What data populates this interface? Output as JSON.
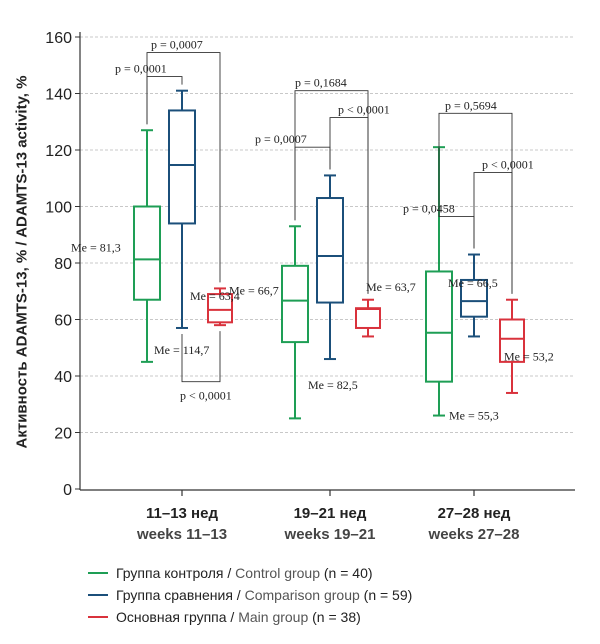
{
  "chart_data": {
    "type": "box",
    "ylabel": "Активность ADAMTS-13, % / ADAMTS-13 activity, %",
    "ylim": [
      0,
      160
    ],
    "yticks": [
      0,
      20,
      40,
      60,
      80,
      100,
      120,
      140,
      160
    ],
    "grid": true,
    "categories": [
      {
        "ru": "11–13 нед",
        "en": "weeks 11–13"
      },
      {
        "ru": "19–21 нед",
        "en": "weeks 19–21"
      },
      {
        "ru": "27–28 нед",
        "en": "weeks 27–28"
      }
    ],
    "series": [
      {
        "name": "Группа контроля / Control group (n = 40)",
        "name_ru": "Группа контроля",
        "name_en": "Control group",
        "n": "(n = 40)",
        "color": "#1e9e55",
        "boxes": [
          {
            "min": 45,
            "q1": 67,
            "median": 81.3,
            "q3": 100,
            "max": 127,
            "label": "Me = 81,3"
          },
          {
            "min": 25,
            "q1": 52,
            "median": 66.7,
            "q3": 79,
            "max": 93,
            "label": "Me = 66,7"
          },
          {
            "min": 26,
            "q1": 38,
            "median": 55.3,
            "q3": 77,
            "max": 121,
            "label": "Me = 55,3"
          }
        ]
      },
      {
        "name": "Группа сравнения / Comparison group (n = 59)",
        "name_ru": "Группа сравнения",
        "name_en": "Comparison group",
        "n": "(n = 59)",
        "color": "#1b4f7a",
        "boxes": [
          {
            "min": 57,
            "q1": 94,
            "median": 114.7,
            "q3": 134,
            "max": 141,
            "label": "Me = 114,7"
          },
          {
            "min": 46,
            "q1": 66,
            "median": 82.5,
            "q3": 103,
            "max": 111,
            "label": "Me = 82,5"
          },
          {
            "min": 54,
            "q1": 61,
            "median": 66.5,
            "q3": 74,
            "max": 83,
            "label": "Me = 66,5"
          }
        ]
      },
      {
        "name": "Основная группа / Main group (n = 38)",
        "name_ru": "Основная группа",
        "name_en": "Main group",
        "n": "(n = 38)",
        "color": "#d9323c",
        "boxes": [
          {
            "min": 58,
            "q1": 59,
            "median": 63.4,
            "q3": 69,
            "max": 71,
            "label": "Me = 63,4"
          },
          {
            "min": 54,
            "q1": 57,
            "median": 63.7,
            "q3": 64,
            "max": 67,
            "label": "Me = 63,7"
          },
          {
            "min": 34,
            "q1": 45,
            "median": 53.2,
            "q3": 60,
            "max": 67,
            "label": "Me = 53,2"
          }
        ]
      }
    ],
    "pvalues": [
      {
        "cat": 0,
        "from": 0,
        "to": 1,
        "y": 146,
        "label": "p = 0,0001"
      },
      {
        "cat": 0,
        "from": 0,
        "to": 2,
        "y": 154.5,
        "label": "p = 0,0007"
      },
      {
        "cat": 0,
        "from": 1,
        "to": 2,
        "y": 38,
        "label": "p < 0,0001",
        "below": true
      },
      {
        "cat": 1,
        "from": 0,
        "to": 1,
        "y": 121,
        "label": "p = 0,0007"
      },
      {
        "cat": 1,
        "from": 0,
        "to": 2,
        "y": 141,
        "label": "p = 0,1684"
      },
      {
        "cat": 1,
        "from": 1,
        "to": 2,
        "y": 131.5,
        "label": "p < 0,0001"
      },
      {
        "cat": 2,
        "from": 0,
        "to": 1,
        "y": 96.5,
        "label": "p = 0,0458"
      },
      {
        "cat": 2,
        "from": 0,
        "to": 2,
        "y": 133,
        "label": "p = 0,5694"
      },
      {
        "cat": 2,
        "from": 1,
        "to": 2,
        "y": 112,
        "label": "p < 0,0001"
      }
    ]
  }
}
